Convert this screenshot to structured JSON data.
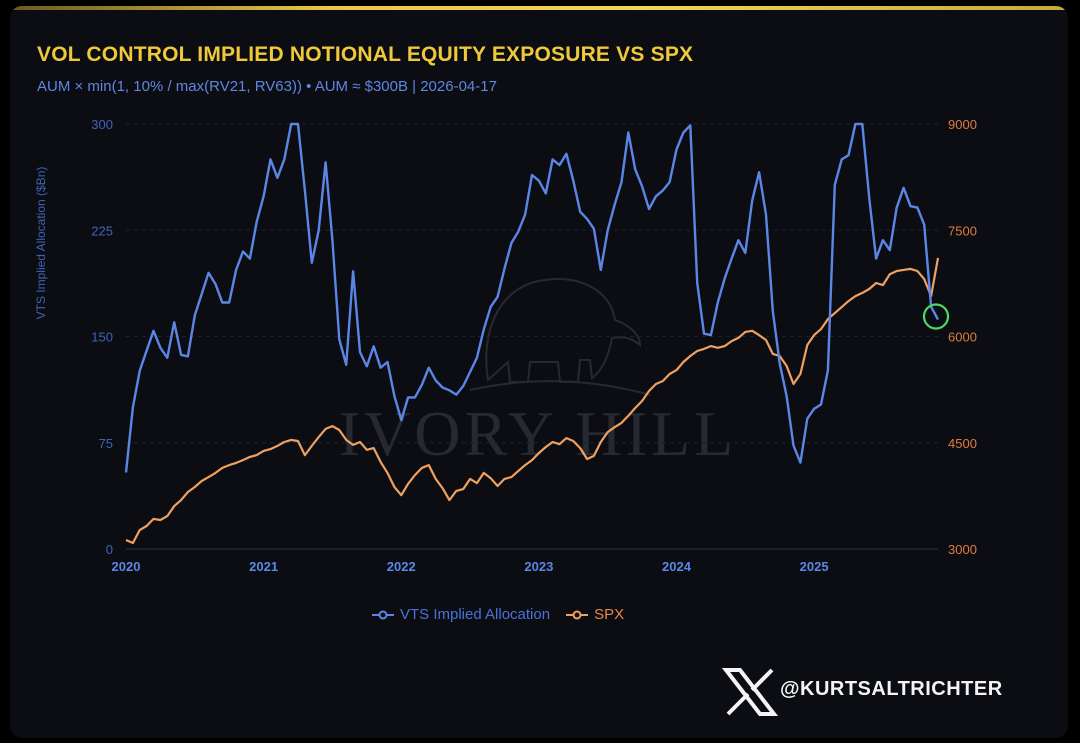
{
  "title": "VOL CONTROL IMPLIED NOTIONAL EQUITY EXPOSURE VS SPX",
  "subtitle": "AUM × min(1, 10% / max(RV21, RV63)) • AUM ≈ $300B | 2026-04-17",
  "watermark": "IVORY HILL",
  "handle": "@KURTSALTRICHTER",
  "colors": {
    "vts": "#5b86e5",
    "spx": "#f0a060",
    "title": "#f0c93a",
    "annotation": "#4cd964",
    "background": "#0b0d13"
  },
  "icons": {
    "social": "x-logo-icon",
    "watermark": "elephant-icon"
  },
  "chart_data": {
    "type": "line",
    "title": "VOL CONTROL IMPLIED NOTIONAL EQUITY EXPOSURE VS SPX",
    "ylabel": "VTS Implied Allocation ($Bn)",
    "y2label": "",
    "xlabel": "",
    "xlim": [
      2020,
      2025.9
    ],
    "ylim": [
      0,
      300
    ],
    "y2lim": [
      3000,
      9000
    ],
    "xticks": [
      "2020",
      "2021",
      "2022",
      "2023",
      "2024",
      "2025"
    ],
    "yticks": [
      "0",
      "75",
      "150",
      "225",
      "300"
    ],
    "y2ticks": [
      "3000",
      "4500",
      "6000",
      "7500",
      "9000"
    ],
    "grid": true,
    "legend_position": "bottom",
    "annotation": "circle at latest VTS low",
    "x": [
      2020.0,
      2020.05,
      2020.1,
      2020.15,
      2020.2,
      2020.25,
      2020.3,
      2020.35,
      2020.4,
      2020.45,
      2020.5,
      2020.55,
      2020.6,
      2020.65,
      2020.7,
      2020.75,
      2020.8,
      2020.85,
      2020.9,
      2020.95,
      2021.0,
      2021.05,
      2021.1,
      2021.15,
      2021.2,
      2021.25,
      2021.3,
      2021.35,
      2021.4,
      2021.45,
      2021.5,
      2021.55,
      2021.6,
      2021.65,
      2021.7,
      2021.75,
      2021.8,
      2021.85,
      2021.9,
      2021.95,
      2022.0,
      2022.05,
      2022.1,
      2022.15,
      2022.2,
      2022.25,
      2022.3,
      2022.35,
      2022.4,
      2022.45,
      2022.5,
      2022.55,
      2022.6,
      2022.65,
      2022.7,
      2022.75,
      2022.8,
      2022.85,
      2022.9,
      2022.95,
      2023.0,
      2023.05,
      2023.1,
      2023.15,
      2023.2,
      2023.25,
      2023.3,
      2023.35,
      2023.4,
      2023.45,
      2023.5,
      2023.55,
      2023.6,
      2023.65,
      2023.7,
      2023.75,
      2023.8,
      2023.85,
      2023.9,
      2023.95,
      2024.0,
      2024.05,
      2024.1,
      2024.15,
      2024.2,
      2024.25,
      2024.3,
      2024.35,
      2024.4,
      2024.45,
      2024.5,
      2024.55,
      2024.6,
      2024.65,
      2024.7,
      2024.75,
      2024.8,
      2024.85,
      2024.9,
      2024.95,
      2025.0,
      2025.05,
      2025.1,
      2025.15,
      2025.2,
      2025.25,
      2025.3,
      2025.35,
      2025.4,
      2025.45,
      2025.5,
      2025.55,
      2025.6,
      2025.65,
      2025.7,
      2025.75,
      2025.8,
      2025.85,
      2025.9
    ],
    "series": [
      {
        "name": "VTS Implied Allocation",
        "axis": "left",
        "values": [
          54,
          100,
          126,
          140,
          154,
          142,
          135,
          160,
          137,
          136,
          165,
          180,
          195,
          187,
          174,
          174,
          197,
          210,
          205,
          231,
          249,
          275,
          262,
          275,
          300,
          300,
          253,
          202,
          225,
          273,
          218,
          148,
          130,
          196,
          139,
          129,
          143,
          128,
          132,
          108,
          91,
          107,
          107,
          116,
          128,
          119,
          114,
          112,
          109,
          115,
          125,
          135,
          155,
          171,
          178,
          198,
          216,
          224,
          236,
          264,
          260,
          251,
          275,
          271,
          279,
          260,
          238,
          233,
          226,
          197,
          225,
          243,
          259,
          294,
          268,
          256,
          240,
          249,
          253,
          259,
          282,
          294,
          299,
          188,
          152,
          151,
          174,
          191,
          205,
          218,
          209,
          246,
          266,
          236,
          168,
          131,
          108,
          73,
          61,
          92,
          99,
          102,
          126,
          257,
          275,
          278,
          300,
          300,
          248,
          205,
          218,
          211,
          241,
          255,
          242,
          241,
          229,
          171,
          162
        ]
      },
      {
        "name": "SPX",
        "axis": "right",
        "values": [
          3127,
          3085,
          3270,
          3325,
          3425,
          3410,
          3465,
          3605,
          3690,
          3805,
          3875,
          3960,
          4015,
          4075,
          4145,
          4185,
          4215,
          4255,
          4300,
          4325,
          4385,
          4410,
          4455,
          4510,
          4540,
          4525,
          4325,
          4455,
          4580,
          4695,
          4735,
          4680,
          4540,
          4470,
          4510,
          4400,
          4425,
          4230,
          4075,
          3875,
          3760,
          3920,
          4045,
          4145,
          4185,
          3990,
          3860,
          3690,
          3820,
          3845,
          3990,
          3930,
          4075,
          4000,
          3890,
          3990,
          4015,
          4100,
          4185,
          4255,
          4355,
          4440,
          4510,
          4480,
          4565,
          4525,
          4425,
          4270,
          4315,
          4510,
          4650,
          4720,
          4780,
          4880,
          4990,
          5090,
          5230,
          5330,
          5370,
          5470,
          5525,
          5640,
          5725,
          5795,
          5825,
          5865,
          5840,
          5865,
          5935,
          5980,
          6065,
          6080,
          6020,
          5950,
          5755,
          5725,
          5585,
          5330,
          5470,
          5880,
          6020,
          6105,
          6245,
          6330,
          6415,
          6500,
          6570,
          6615,
          6670,
          6755,
          6725,
          6880,
          6925,
          6940,
          6955,
          6925,
          6810,
          6570,
          7110
        ]
      }
    ]
  }
}
